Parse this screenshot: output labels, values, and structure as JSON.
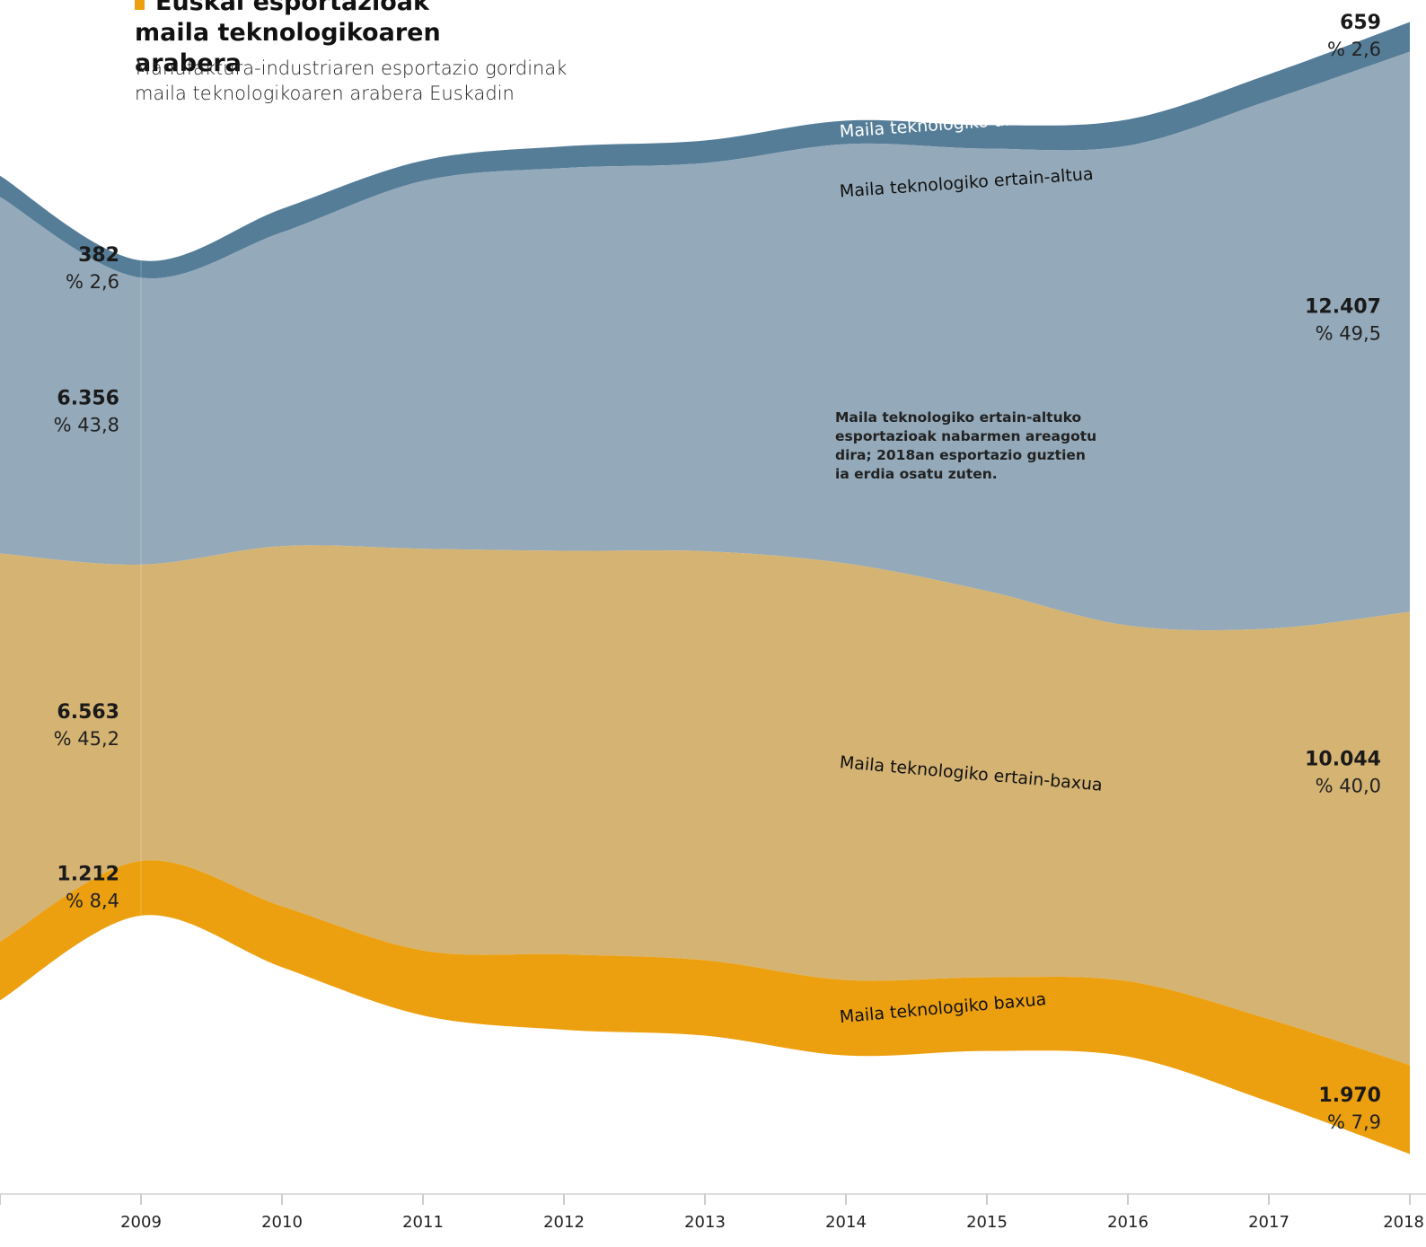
{
  "chart_data": {
    "type": "streamgraph",
    "title": "Euskal esportazioak maila teknologikoaren arabera",
    "subtitle": "Manufaktura-industriaren esportazio gordinak maila teknologikoaren arabera Euskadin",
    "annotation": "Maila teknologiko ertain-altuko esportazioak nabarmen areagotu dira; 2018an esportazio guztien ia erdia osatu zuten.",
    "categories": [
      null,
      "2009",
      "2010",
      "2011",
      "2012",
      "2013",
      "2014",
      "2015",
      "2016",
      "2017",
      "2018"
    ],
    "series": [
      {
        "name": "Maila teknologiko altua",
        "color": "#557d98",
        "values": [
          470,
          382,
          520,
          450,
          480,
          500,
          520,
          520,
          580,
          580,
          659
        ],
        "value_labels": [
          null,
          "382",
          null,
          null,
          null,
          null,
          null,
          null,
          null,
          null,
          "659"
        ],
        "share_labels": [
          null,
          "% 2,6",
          null,
          null,
          null,
          null,
          null,
          null,
          null,
          null,
          "% 2,6"
        ]
      },
      {
        "name": "Maila teknologiko ertain-altua",
        "color": "#94a9b9",
        "values": [
          7900,
          6356,
          6950,
          8150,
          8480,
          8600,
          9290,
          9800,
          10630,
          11700,
          12407
        ],
        "value_labels": [
          null,
          "6.356",
          null,
          null,
          null,
          null,
          null,
          null,
          null,
          null,
          "12.407"
        ],
        "share_labels": [
          null,
          "% 43,8",
          null,
          null,
          null,
          null,
          null,
          null,
          null,
          null,
          "% 49,5"
        ]
      },
      {
        "name": "Maila teknologiko ertain-baxua",
        "color": "#d5b373",
        "values": [
          8600,
          6563,
          7980,
          8900,
          8940,
          9060,
          9230,
          8560,
          7880,
          8650,
          10044
        ],
        "value_labels": [
          null,
          "6.563",
          null,
          null,
          null,
          null,
          null,
          null,
          null,
          null,
          "10.044"
        ],
        "share_labels": [
          null,
          "% 45,2",
          null,
          null,
          null,
          null,
          null,
          null,
          null,
          null,
          "% 40,0"
        ]
      },
      {
        "name": "Maila teknologiko baxua",
        "color": "#eca010",
        "values": [
          1300,
          1212,
          1350,
          1440,
          1670,
          1670,
          1670,
          1630,
          1670,
          1830,
          1970
        ],
        "value_labels": [
          null,
          "1.212",
          null,
          null,
          null,
          null,
          null,
          null,
          null,
          null,
          "1.970"
        ],
        "share_labels": [
          null,
          "% 8,4",
          null,
          null,
          null,
          null,
          null,
          null,
          null,
          null,
          "% 7,9"
        ]
      }
    ]
  }
}
